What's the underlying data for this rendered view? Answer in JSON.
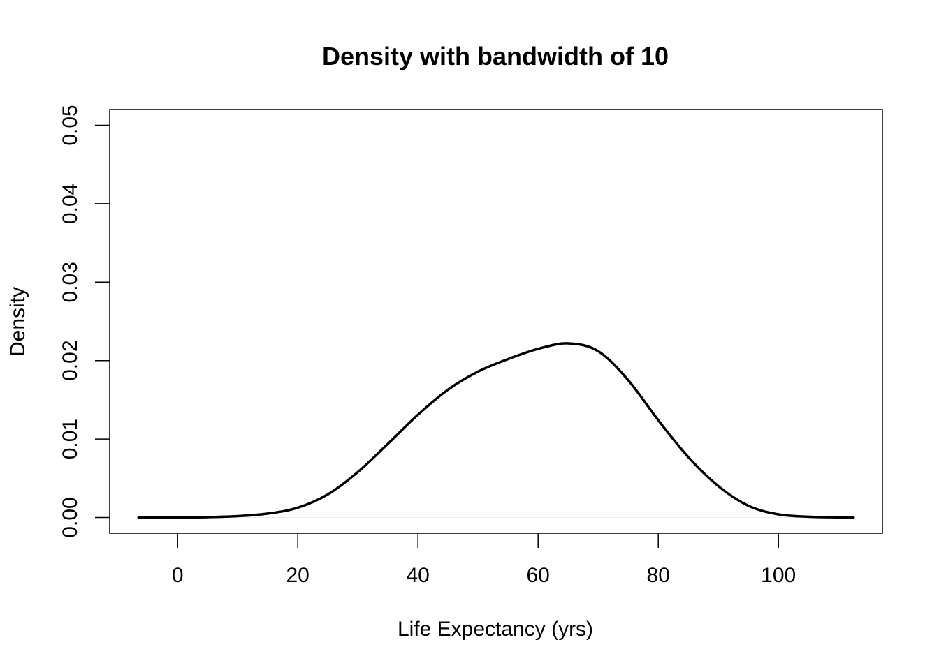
{
  "chart_data": {
    "type": "line",
    "title": "Density with bandwidth of 10",
    "xlabel": "Life Expectancy (yrs)",
    "ylabel": "Density",
    "xlim": [
      -11.3,
      117.3
    ],
    "ylim": [
      -0.002,
      0.052
    ],
    "x_ticks": [
      0,
      20,
      40,
      60,
      80,
      100
    ],
    "x_tick_labels": [
      "0",
      "20",
      "40",
      "60",
      "80",
      "100"
    ],
    "y_ticks": [
      0.0,
      0.01,
      0.02,
      0.03,
      0.04,
      0.05
    ],
    "y_tick_labels": [
      "0.00",
      "0.01",
      "0.02",
      "0.03",
      "0.04",
      "0.05"
    ],
    "grid": false,
    "legend": "none",
    "line_color": "#000000",
    "zero_line": true,
    "series": [
      {
        "x": [
          -6.5,
          0,
          5,
          10,
          15,
          20,
          25,
          30,
          35,
          40,
          45,
          50,
          55,
          60,
          65,
          70,
          75,
          80,
          85,
          90,
          95,
          100,
          105,
          110,
          112.5
        ],
        "values": [
          0.0,
          1e-05,
          5e-05,
          0.00018,
          0.0005,
          0.00125,
          0.00295,
          0.0058,
          0.0094,
          0.0131,
          0.0163,
          0.0186,
          0.0202,
          0.0215,
          0.0222,
          0.0212,
          0.0175,
          0.0124,
          0.0077,
          0.004,
          0.0015,
          0.0004,
          0.0001,
          2e-05,
          0.0
        ]
      }
    ]
  }
}
